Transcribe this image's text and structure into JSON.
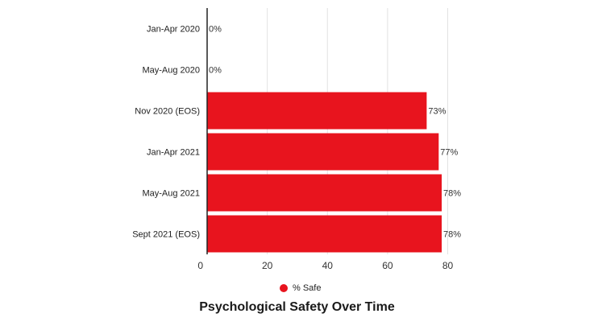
{
  "chart_data": {
    "type": "bar",
    "orientation": "horizontal",
    "title": "Psychological Safety Over Time",
    "categories": [
      "Jan-Apr 2020",
      "May-Aug 2020",
      "Nov 2020 (EOS)",
      "Jan-Apr 2021",
      "May-Aug 2021",
      "Sept 2021 (EOS)"
    ],
    "series": [
      {
        "name": "% Safe",
        "values": [
          0,
          0,
          73,
          77,
          78,
          78
        ],
        "data_labels": [
          "0%",
          "0%",
          "73%",
          "77%",
          "78%",
          "78%"
        ],
        "color": "#e8141e"
      }
    ],
    "xlim": [
      0,
      80
    ],
    "xticks": [
      0,
      20,
      40,
      60,
      80
    ],
    "xtick_labels": [
      "0",
      "20",
      "40",
      "60",
      "80"
    ],
    "grid": true,
    "legend_position": "bottom"
  }
}
